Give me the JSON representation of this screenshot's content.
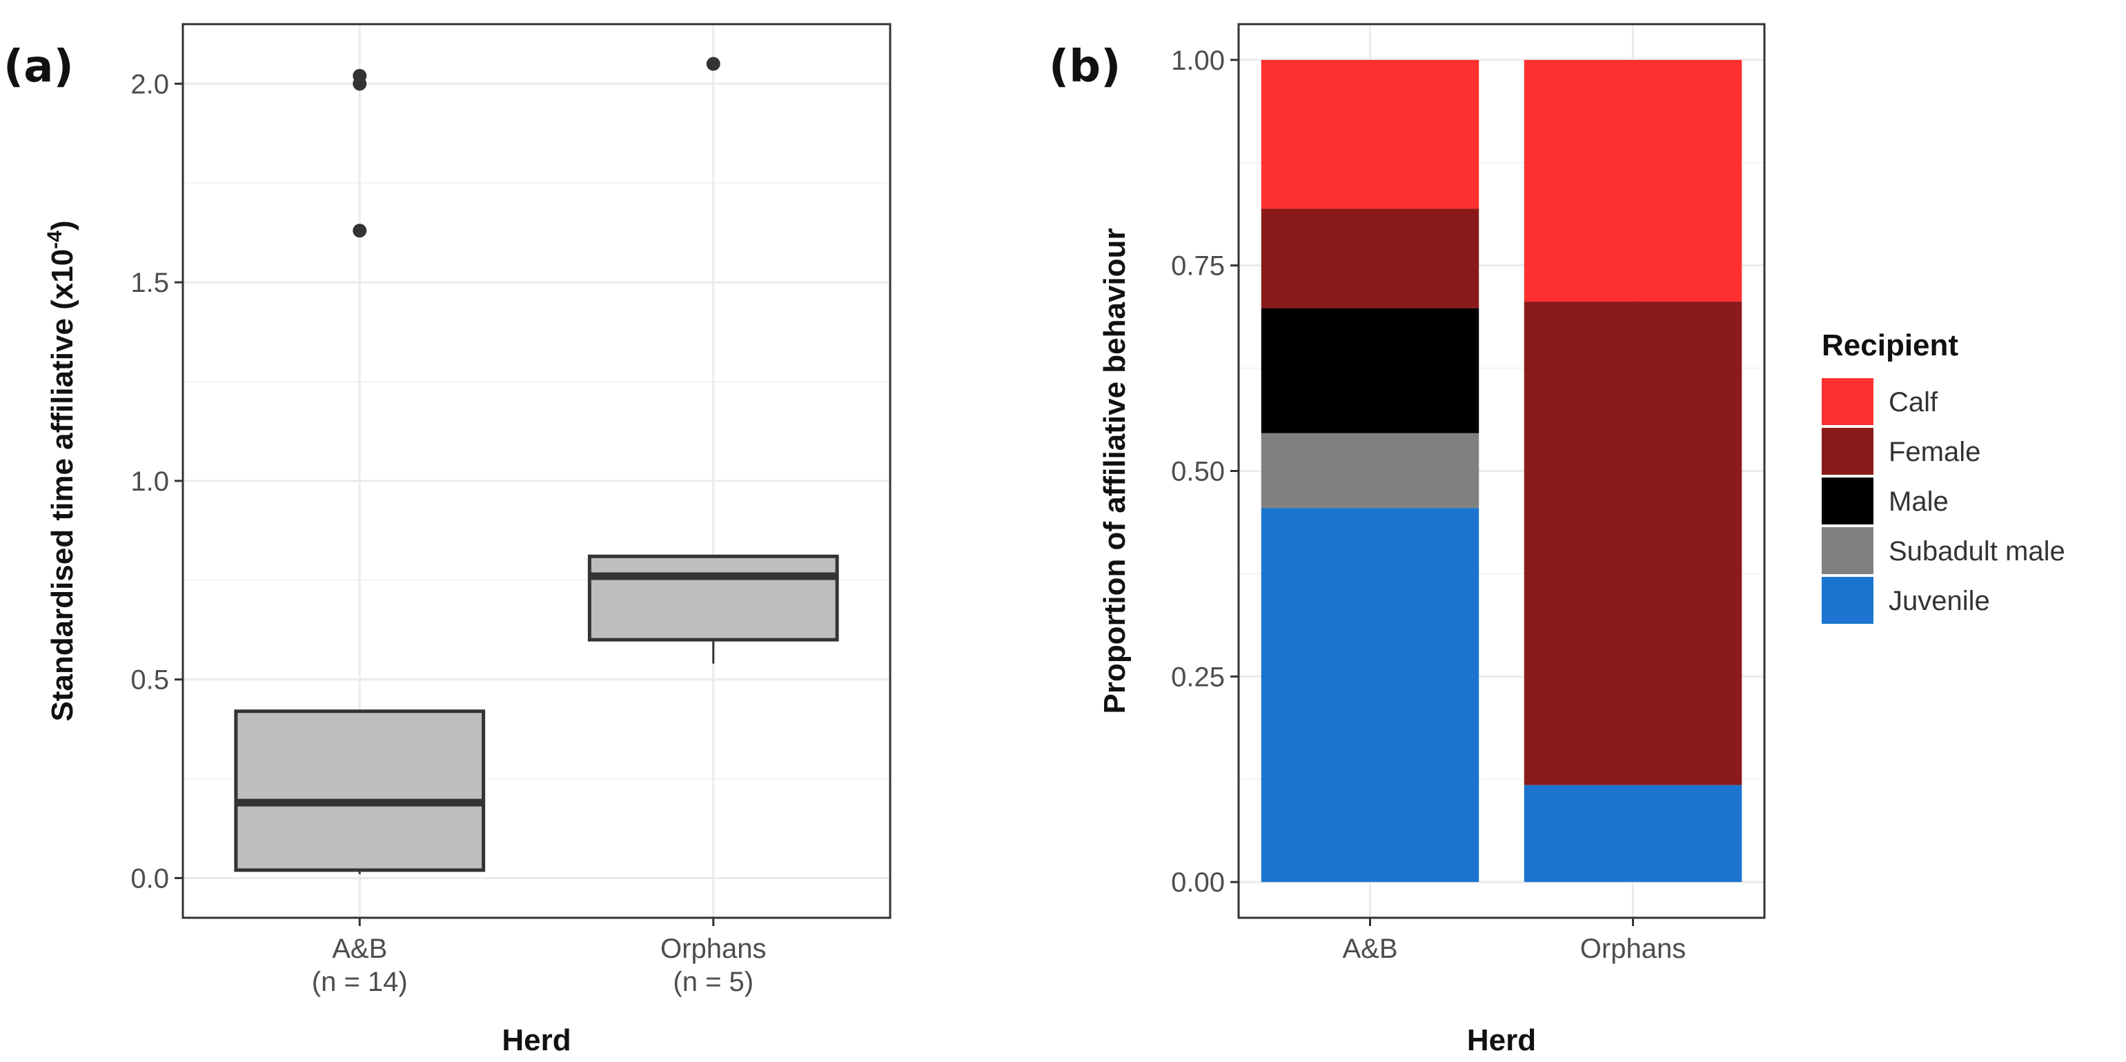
{
  "chart_data": [
    {
      "type": "box",
      "panel_label": "(a)",
      "title": "",
      "xlabel": "Herd",
      "ylabel_main": "Standardised time affiliative (x10",
      "ylabel_sup": "-4",
      "ylabel_close": ")",
      "ylim": [
        -0.1,
        2.15
      ],
      "yticks": [
        0.0,
        0.5,
        1.0,
        1.5,
        2.0
      ],
      "ytick_labels": [
        "0.0",
        "0.5",
        "1.0",
        "1.5",
        "2.0"
      ],
      "grid": true,
      "categories": [
        {
          "name": "A&B",
          "n_label": "(n = 14)"
        },
        {
          "name": "Orphans",
          "n_label": "(n = 5)"
        }
      ],
      "boxes": [
        {
          "whisker_low": 0.01,
          "q1": 0.02,
          "median": 0.19,
          "q3": 0.42,
          "whisker_high": 0.42,
          "outliers": [
            1.63,
            2.0,
            2.02
          ]
        },
        {
          "whisker_low": 0.54,
          "q1": 0.6,
          "median": 0.76,
          "q3": 0.81,
          "whisker_high": 0.81,
          "outliers": [
            2.05
          ]
        }
      ],
      "colors": {
        "box_fill": "#bebebe",
        "box_line": "#333333",
        "outlier": "#333333"
      }
    },
    {
      "type": "bar",
      "stacked": true,
      "panel_label": "(b)",
      "title": "",
      "xlabel": "Herd",
      "ylabel": "Proportion of affiliative behaviour",
      "ylim": [
        0,
        1
      ],
      "yticks": [
        0.0,
        0.25,
        0.5,
        0.75,
        1.0
      ],
      "ytick_labels": [
        "0.00",
        "0.25",
        "0.50",
        "0.75",
        "1.00"
      ],
      "grid": true,
      "categories": [
        "A&B",
        "Orphans"
      ],
      "series": [
        {
          "name": "Juvenile",
          "color": "#1b75d0",
          "values": [
            0.455,
            0.118
          ]
        },
        {
          "name": "Subadult male",
          "color": "#808080",
          "values": [
            0.091,
            0.0
          ]
        },
        {
          "name": "Male",
          "color": "#000000",
          "values": [
            0.152,
            0.0
          ]
        },
        {
          "name": "Female",
          "color": "#8b1a1a",
          "values": [
            0.121,
            0.588
          ]
        },
        {
          "name": "Calf",
          "color": "#ff3030",
          "values": [
            0.181,
            0.294
          ]
        }
      ],
      "legend": {
        "title": "Recipient",
        "position": "right",
        "order": [
          "Calf",
          "Female",
          "Male",
          "Subadult male",
          "Juvenile"
        ]
      }
    }
  ]
}
